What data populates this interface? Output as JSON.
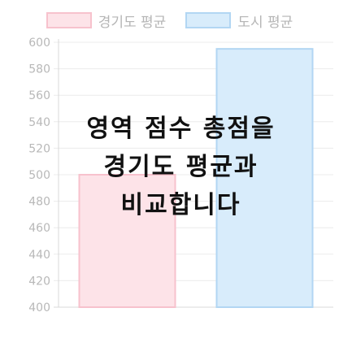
{
  "chart_data": {
    "type": "bar",
    "categories": [
      "경기도 평균",
      "도시 평균"
    ],
    "values": [
      500,
      595
    ],
    "ylim": [
      400,
      600
    ],
    "ytick_step": 20,
    "grid": true,
    "legend": "top",
    "colors": {
      "경기도 평균": {
        "fill": "#fde3e8",
        "stroke": "#f7c2cd"
      },
      "도시 평균": {
        "fill": "#d8ecfb",
        "stroke": "#b2d6f3"
      }
    }
  },
  "overlay": {
    "line1": "영역 점수 총점을",
    "line2": "경기도 평균과",
    "line3": "비교합니다"
  }
}
